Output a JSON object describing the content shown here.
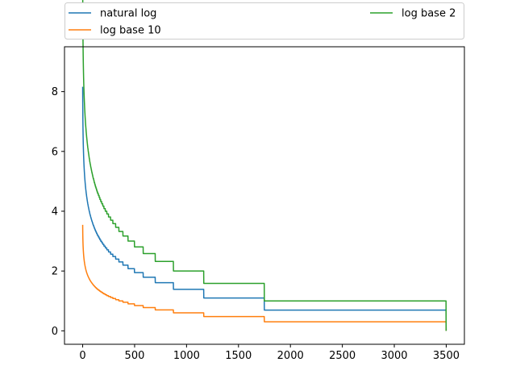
{
  "chart_data": {
    "type": "line",
    "title": "",
    "xlabel": "",
    "ylabel": "",
    "xlim": [
      -175,
      3675
    ],
    "ylim": [
      -0.45,
      9.5
    ],
    "xticks": [
      0,
      500,
      1000,
      1500,
      2000,
      2500,
      3000,
      3500
    ],
    "yticks": [
      0,
      2,
      4,
      6,
      8
    ],
    "grid": false,
    "legend": {
      "placement": "top, above plot (2 columns)"
    },
    "count": 3500,
    "series": [
      {
        "name": "natural log",
        "color": "#1f77b4",
        "function": "ln(1 + floor(3499 / (i + 1)))"
      },
      {
        "name": "log base 10",
        "color": "#ff7f0e",
        "function": "log10(1 + floor(3499 / (i + 1)))"
      },
      {
        "name": "log base 2",
        "color": "#2ca02c",
        "function": "log2(1 + floor(3499 / (i + 1)))"
      }
    ]
  }
}
